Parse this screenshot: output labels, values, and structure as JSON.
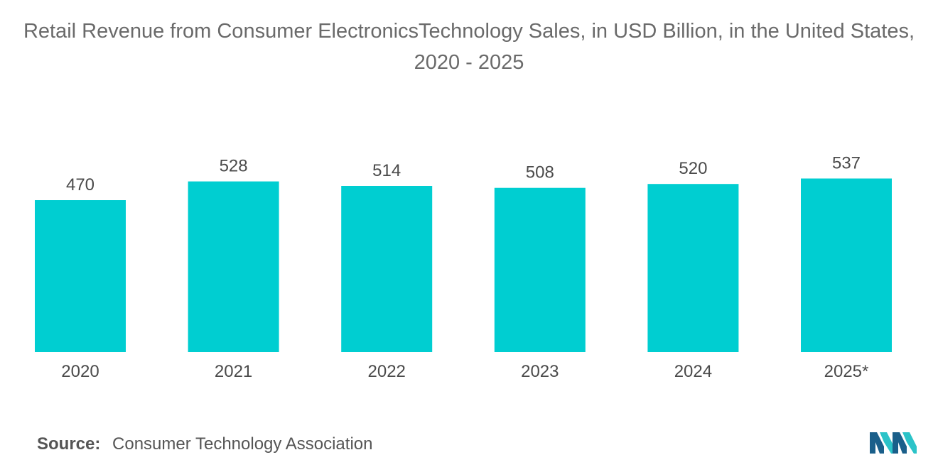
{
  "chart_data": {
    "type": "bar",
    "title": "Retail Revenue from Consumer ElectronicsTechnology Sales, in USD Billion, in the United States, 2020 - 2025",
    "categories": [
      "2020",
      "2021",
      "2022",
      "2023",
      "2024",
      "2025*"
    ],
    "values": [
      470,
      528,
      514,
      508,
      520,
      537
    ],
    "value_labels": [
      "470",
      "528",
      "514",
      "508",
      "520",
      "537"
    ],
    "xlabel": "",
    "ylabel": "",
    "grid": false,
    "legend": "none",
    "bar_color": "#00ced1"
  },
  "source": {
    "label": "Source:",
    "text": "Consumer Technology Association"
  },
  "colors": {
    "bar": "#00ced1",
    "logo_dark": "#1a5f8a",
    "logo_light": "#2bc3c8"
  }
}
